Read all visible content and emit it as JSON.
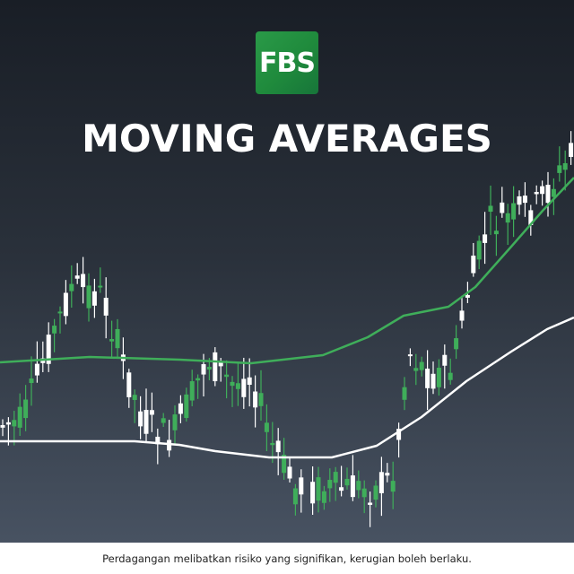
{
  "logo": {
    "text": "FBS"
  },
  "header": {
    "title": "MOVING AVERAGES"
  },
  "footer": {
    "disclaimer": "Perdagangan melibatkan risiko yang signifikan, kerugian boleh berlaku."
  }
}
